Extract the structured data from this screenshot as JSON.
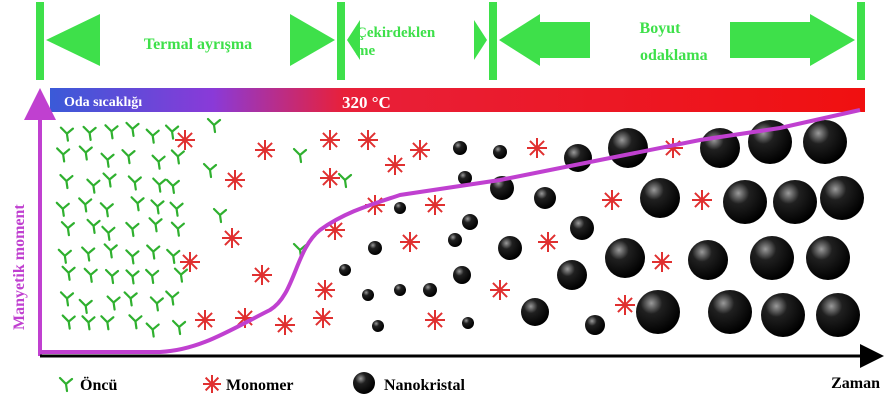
{
  "phases": [
    {
      "lines": [
        "Termal ayrışma"
      ]
    },
    {
      "lines": [
        "Çekirdeklen",
        "me"
      ]
    },
    {
      "lines": [
        "Boyut",
        "odaklama"
      ]
    }
  ],
  "temperature": {
    "start": "Oda sıcaklığı",
    "end": "320 °C"
  },
  "y_axis": "Manyetik moment",
  "x_axis": "Zaman",
  "legend": [
    "Öncü",
    "Monomer",
    "Nanokristal"
  ]
}
